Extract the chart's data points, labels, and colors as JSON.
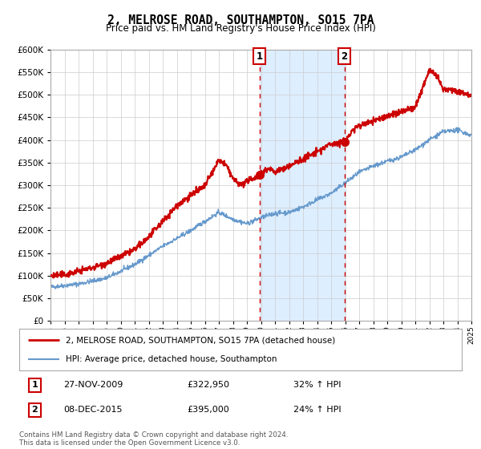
{
  "title": "2, MELROSE ROAD, SOUTHAMPTON, SO15 7PA",
  "subtitle": "Price paid vs. HM Land Registry's House Price Index (HPI)",
  "legend_line1": "2, MELROSE ROAD, SOUTHAMPTON, SO15 7PA (detached house)",
  "legend_line2": "HPI: Average price, detached house, Southampton",
  "transaction1_date": "27-NOV-2009",
  "transaction1_price": "£322,950",
  "transaction1_hpi": "32% ↑ HPI",
  "transaction2_date": "08-DEC-2015",
  "transaction2_price": "£395,000",
  "transaction2_hpi": "24% ↑ HPI",
  "footer": "Contains HM Land Registry data © Crown copyright and database right 2024.\nThis data is licensed under the Open Government Licence v3.0.",
  "property_color": "#cc0000",
  "hpi_color": "#6699cc",
  "shaded_region_color": "#ddeeff",
  "vline_color": "#cc0000",
  "marker_color": "#cc0000",
  "background_color": "#ffffff",
  "grid_color": "#cccccc",
  "ylim_min": 0,
  "ylim_max": 600000,
  "transaction1_year": 2009.9,
  "transaction2_year": 2015.95,
  "transaction1_price_val": 322950,
  "transaction2_price_val": 395000
}
